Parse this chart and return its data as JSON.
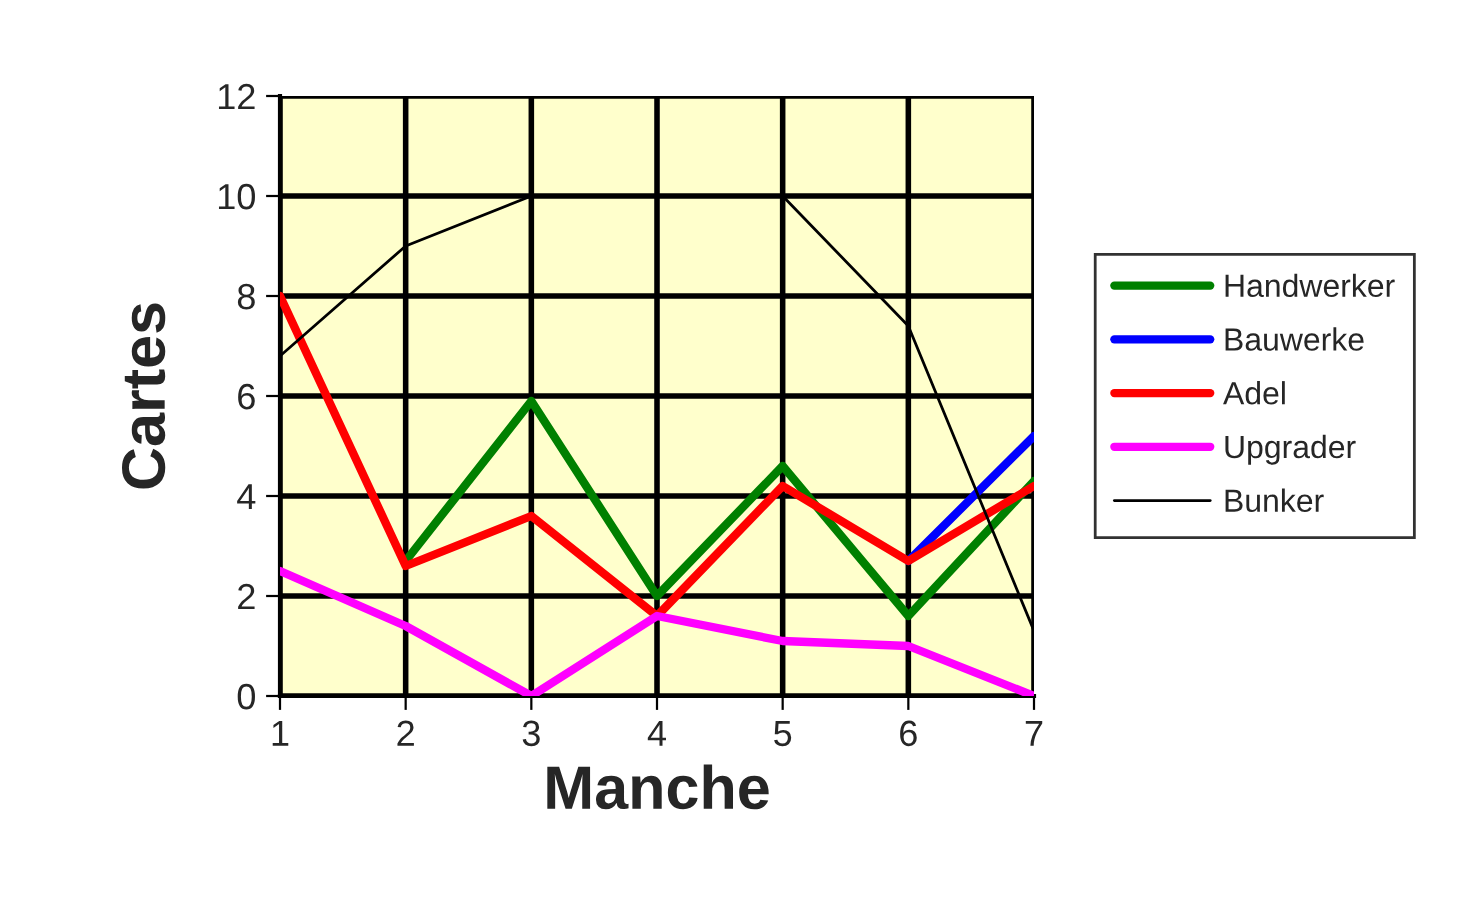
{
  "chart_data": {
    "type": "line",
    "xlabel": "Manche",
    "ylabel": "Cartes",
    "x": [
      1,
      2,
      3,
      4,
      5,
      6,
      7
    ],
    "series": [
      {
        "name": "Handwerker",
        "color": "#008000",
        "values": [
          null,
          2.7,
          5.9,
          2.0,
          4.6,
          1.6,
          4.3
        ]
      },
      {
        "name": "Bauwerke",
        "color": "#0000ff",
        "values": [
          null,
          null,
          null,
          null,
          null,
          2.7,
          5.2
        ]
      },
      {
        "name": "Adel",
        "color": "#ff0000",
        "values": [
          8.0,
          2.6,
          3.6,
          1.6,
          4.2,
          2.7,
          4.2
        ]
      },
      {
        "name": "Upgrader",
        "color": "#ff00ff",
        "values": [
          2.5,
          1.4,
          0,
          1.6,
          1.1,
          1.0,
          0
        ]
      },
      {
        "name": "Bunker",
        "color": "#000000",
        "values": [
          6.8,
          9.0,
          10.0,
          10.0,
          10.0,
          7.4,
          1.3
        ]
      }
    ],
    "xlim": [
      1,
      7
    ],
    "xticks": [
      1,
      2,
      3,
      4,
      5,
      6,
      7
    ],
    "ylim": [
      0,
      12
    ],
    "yticks": [
      0,
      2,
      4,
      6,
      8,
      10,
      12
    ],
    "grid": true,
    "legend": "right",
    "marker": "none",
    "line_style": "solid"
  }
}
